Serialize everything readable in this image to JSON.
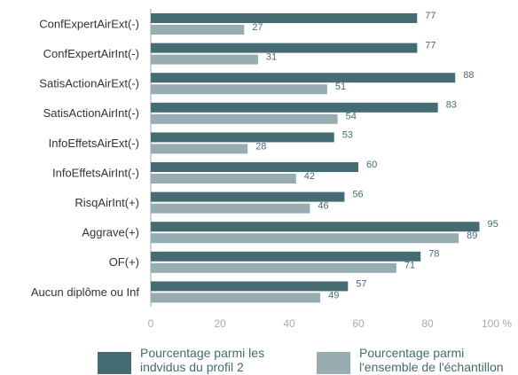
{
  "chart_data": {
    "type": "hbar",
    "categories": [
      "ConfExpertAirExt(-)",
      "ConfExpertAirInt(-)",
      "SatisActionAirExt(-)",
      "SatisActionAirInt(-)",
      "InfoEffetsAirExt(-)",
      "InfoEffetsAirInt(-)",
      "RisqAirInt(+)",
      "Aggrave(+)",
      "OF(+)",
      "Aucun diplôme ou Inf"
    ],
    "series": [
      {
        "name": "Pourcentage parmi les indvidus du profil 2",
        "color": "#456b73",
        "values": [
          77,
          77,
          88,
          83,
          53,
          60,
          56,
          95,
          78,
          57
        ]
      },
      {
        "name": "Pourcentage parmi l'ensemble de l'échantillon",
        "color": "#98adb2",
        "values": [
          27,
          31,
          51,
          54,
          28,
          42,
          46,
          89,
          71,
          49
        ]
      }
    ],
    "xlim": [
      0,
      100
    ],
    "xticks": [
      0,
      20,
      40,
      60,
      80,
      {
        "value": 100,
        "label": "100 %"
      }
    ]
  }
}
